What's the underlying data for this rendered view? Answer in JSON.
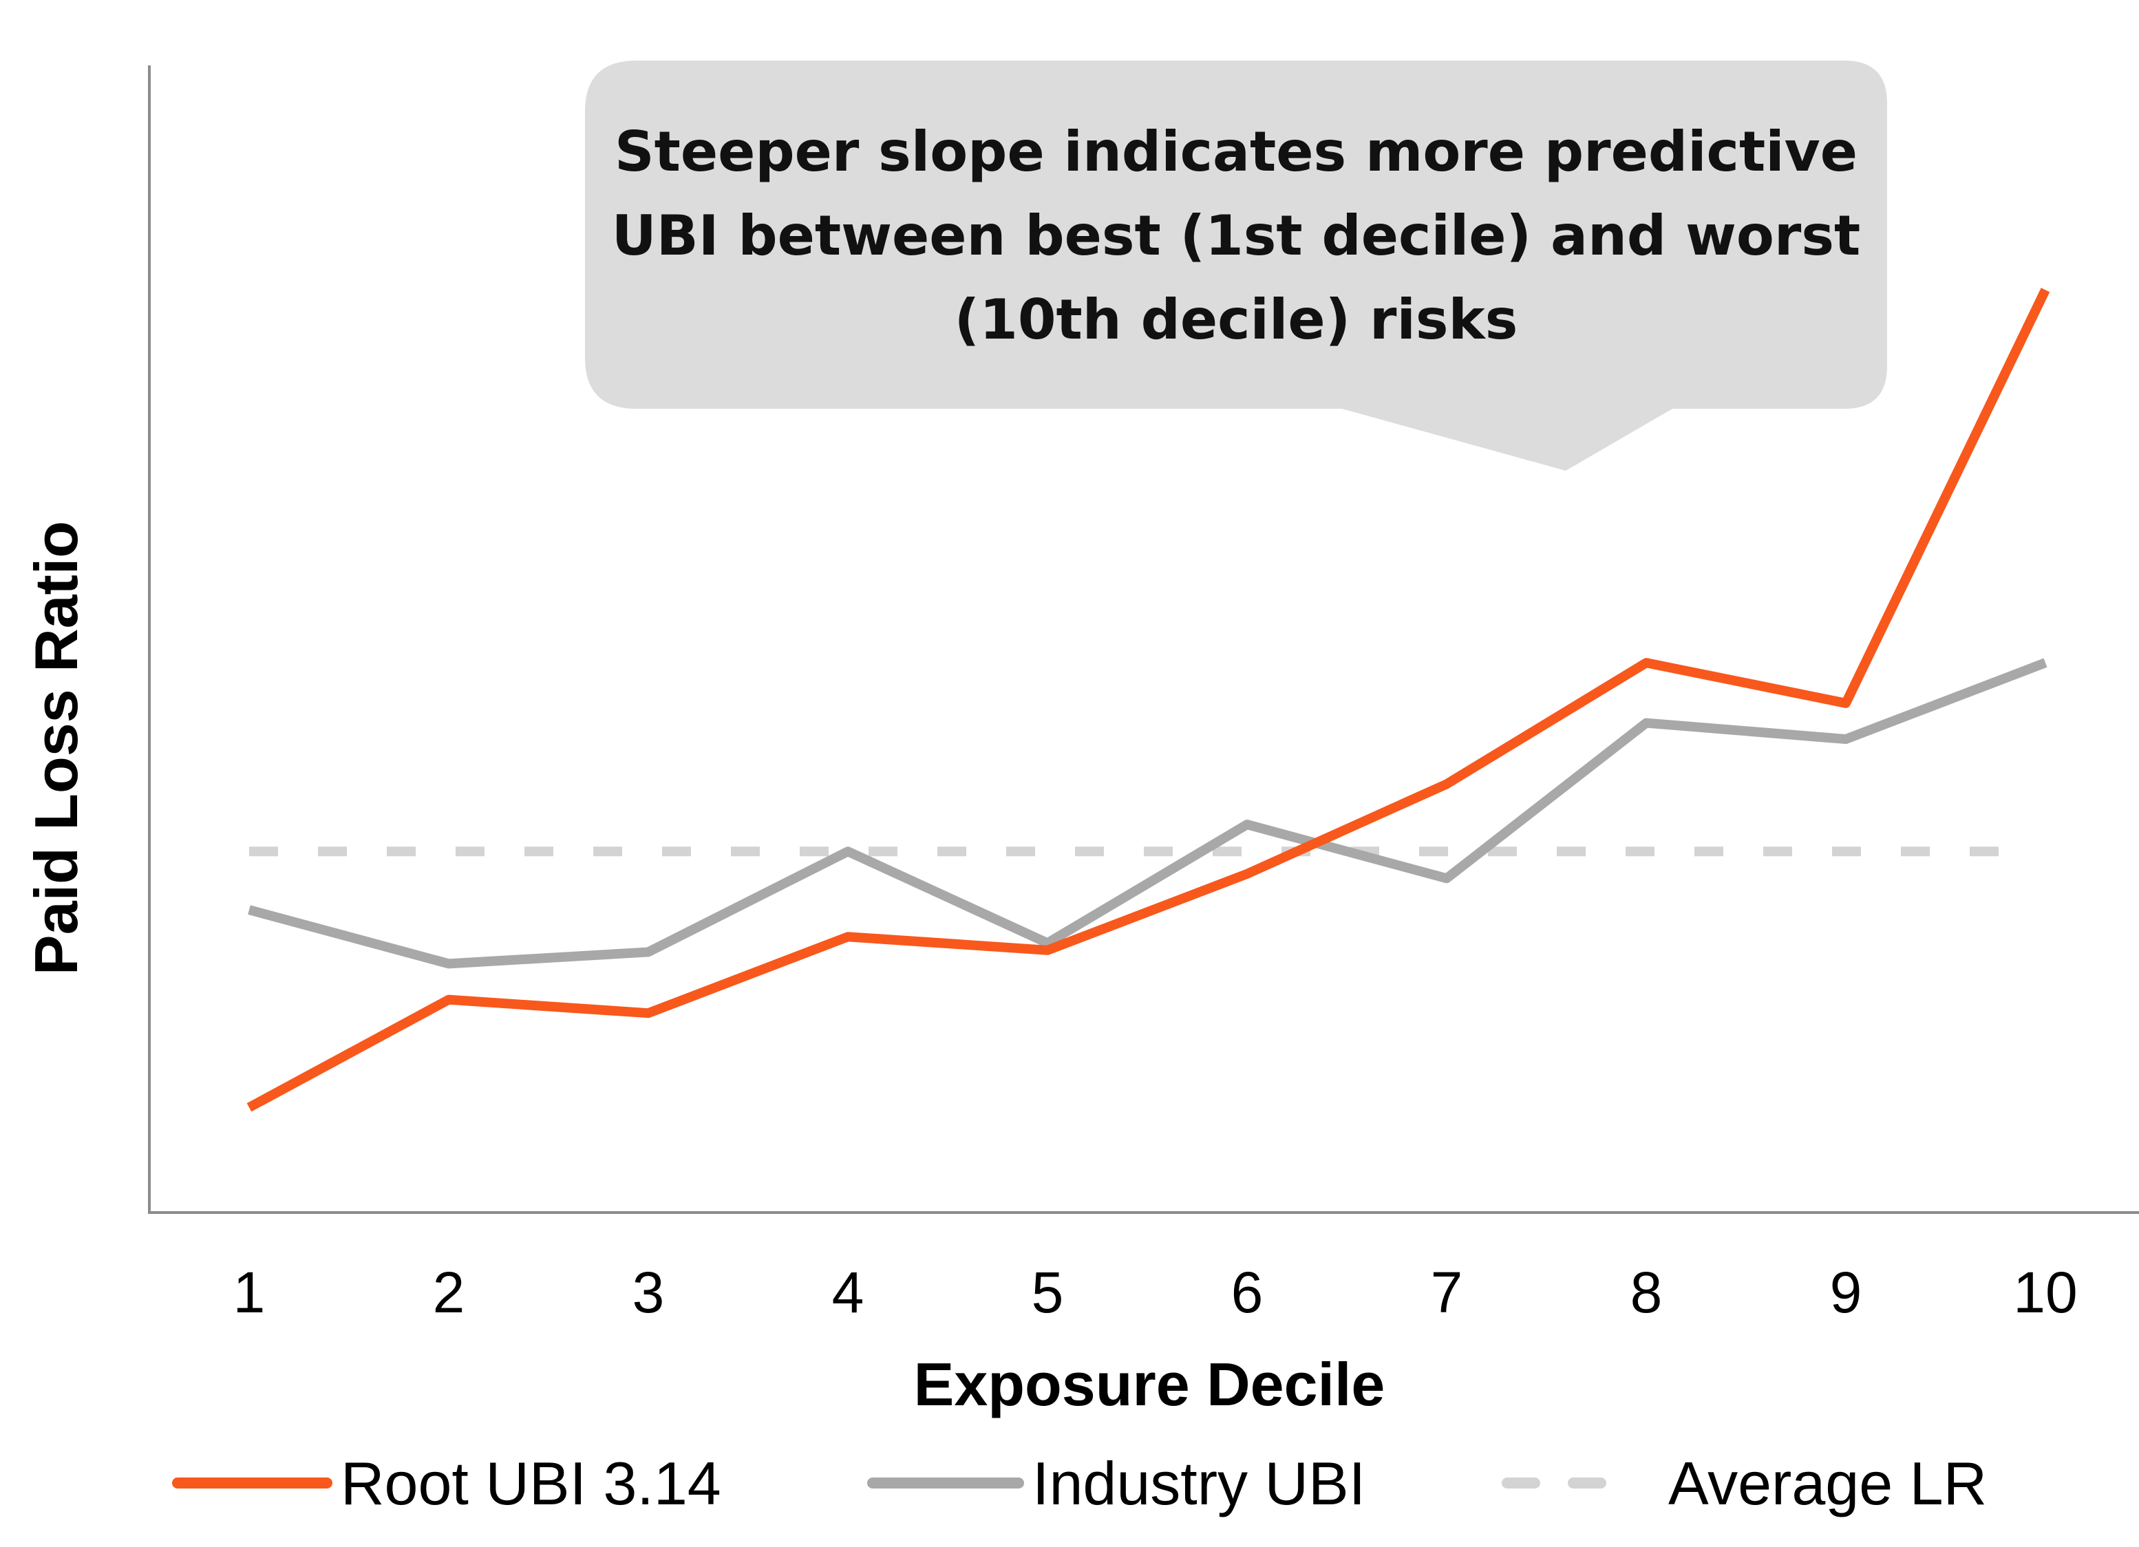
{
  "chart_data": {
    "type": "line",
    "categories": [
      "1",
      "2",
      "3",
      "4",
      "5",
      "6",
      "7",
      "8",
      "9",
      "10"
    ],
    "x": [
      1,
      2,
      3,
      4,
      5,
      6,
      7,
      8,
      9,
      10
    ],
    "series": [
      {
        "name": "Root UBI 3.14",
        "color": "#f8581c",
        "dashed": false,
        "values": [
          0.09,
          0.21,
          0.195,
          0.28,
          0.265,
          0.35,
          0.45,
          0.585,
          0.54,
          1.0
        ]
      },
      {
        "name": "Industry UBI",
        "color": "#a8a8a8",
        "dashed": false,
        "values": [
          0.31,
          0.25,
          0.263,
          0.375,
          0.273,
          0.405,
          0.345,
          0.518,
          0.5,
          0.585
        ]
      },
      {
        "name": "Average LR",
        "color": "#d3d3d3",
        "dashed": true,
        "values": [
          0.375,
          0.375,
          0.375,
          0.375,
          0.375,
          0.375,
          0.375,
          0.375,
          0.375,
          0.375
        ]
      }
    ],
    "title": "",
    "xlabel": "Exposure Decile",
    "ylabel": "Paid Loss Ratio",
    "ylim": [
      -0.027,
      1.25
    ],
    "grid": false,
    "legend_position": "bottom",
    "annotation": {
      "lines": [
        "Steeper slope indicates more predictive",
        "UBI between best (1st decile) and worst",
        "(10th decile) risks"
      ],
      "background_color": "#dcdcdc"
    }
  }
}
